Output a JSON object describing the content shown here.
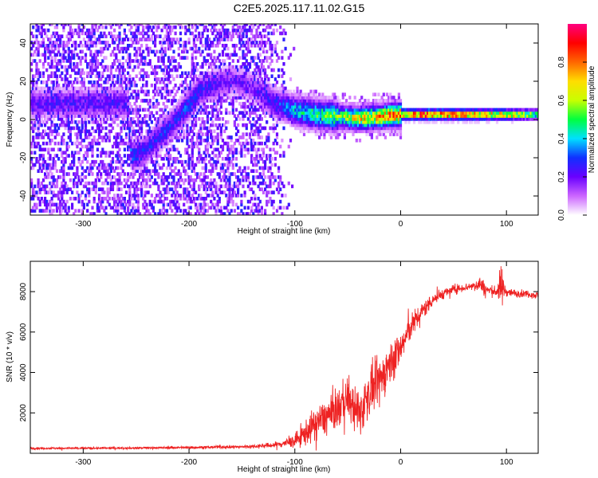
{
  "title": "C2E5.2025.117.11.02.G15",
  "colors": {
    "snr_line": "#ee2222",
    "axis": "#000000",
    "background": "#ffffff"
  },
  "colorbar": {
    "label": "Normalized spectral amplitude",
    "range": [
      0.0,
      1.0
    ],
    "ticks": [
      "0.0",
      "0.2",
      "0.4",
      "0.6",
      "0.8"
    ],
    "tick_values": [
      0.0,
      0.2,
      0.4,
      0.6,
      0.8
    ],
    "colormap": [
      "#ffffff",
      "#cc66ff",
      "#6a00ff",
      "#1030ff",
      "#00e0ff",
      "#00ff40",
      "#c8ff00",
      "#ffdd00",
      "#ff6600",
      "#ff0000",
      "#ff0080"
    ]
  },
  "chart_data": [
    {
      "type": "heatmap",
      "xlabel": "Height of straight line (km)",
      "ylabel": "Frequency (Hz)",
      "xlim": [
        -350,
        130
      ],
      "ylim": [
        -50,
        50
      ],
      "xticks": [
        -300,
        -200,
        -100,
        0,
        100
      ],
      "xtick_labels": [
        "-300",
        "-200",
        "-100",
        "0",
        "100"
      ],
      "yticks": [
        -40,
        -20,
        0,
        20,
        40
      ],
      "ytick_labels": [
        "-40",
        "-20",
        "0",
        "20",
        "40"
      ],
      "ridge": {
        "x": [
          -260,
          -255,
          -245,
          -230,
          -215,
          -200,
          -190,
          -175,
          -160,
          -140,
          -120,
          -100,
          -80,
          -60,
          -40,
          -20,
          0,
          20,
          60,
          100,
          130
        ],
        "y": [
          8,
          -20,
          -18,
          -10,
          -2,
          8,
          15,
          18,
          20,
          16,
          8,
          4,
          2,
          1,
          0,
          1,
          2,
          2,
          2,
          2,
          2
        ],
        "peak_amplitude": [
          0.25,
          0.35,
          0.3,
          0.3,
          0.3,
          0.35,
          0.3,
          0.25,
          0.2,
          0.2,
          0.3,
          0.45,
          0.55,
          0.6,
          0.75,
          0.85,
          0.95,
          0.98,
          0.9,
          0.85,
          0.55
        ]
      },
      "noise_extent_x": [
        -350,
        -100
      ]
    },
    {
      "type": "line",
      "xlabel": "Height of straight line (km)",
      "ylabel": "SNR (10 * v/v)",
      "xlim": [
        -350,
        130
      ],
      "ylim": [
        0,
        9500
      ],
      "xticks": [
        -300,
        -200,
        -100,
        0,
        100
      ],
      "xtick_labels": [
        "-300",
        "-200",
        "-100",
        "0",
        "100"
      ],
      "yticks": [
        2000,
        4000,
        6000,
        8000
      ],
      "ytick_labels": [
        "2000",
        "4000",
        "6000",
        "8000"
      ],
      "series": [
        {
          "x": [
            -350,
            -300,
            -250,
            -200,
            -150,
            -120,
            -100,
            -90,
            -80,
            -70,
            -60,
            -50,
            -40,
            -30,
            -20,
            -10,
            0,
            10,
            20,
            30,
            40,
            50,
            60,
            70,
            75,
            80,
            90,
            95,
            100,
            110,
            120,
            130
          ],
          "y": [
            250,
            250,
            260,
            290,
            320,
            400,
            600,
            1000,
            1500,
            1800,
            2200,
            2800,
            1800,
            3000,
            3500,
            4500,
            5200,
            6300,
            7000,
            7600,
            7900,
            8100,
            8200,
            8300,
            8400,
            8100,
            8000,
            8200,
            8000,
            7900,
            7900,
            7800
          ],
          "noise": [
            60,
            60,
            60,
            70,
            90,
            150,
            350,
            700,
            900,
            1000,
            1100,
            1200,
            1300,
            1300,
            1300,
            1200,
            1000,
            700,
            500,
            400,
            300,
            250,
            220,
            250,
            500,
            350,
            250,
            1200,
            250,
            200,
            200,
            200
          ]
        }
      ]
    }
  ]
}
